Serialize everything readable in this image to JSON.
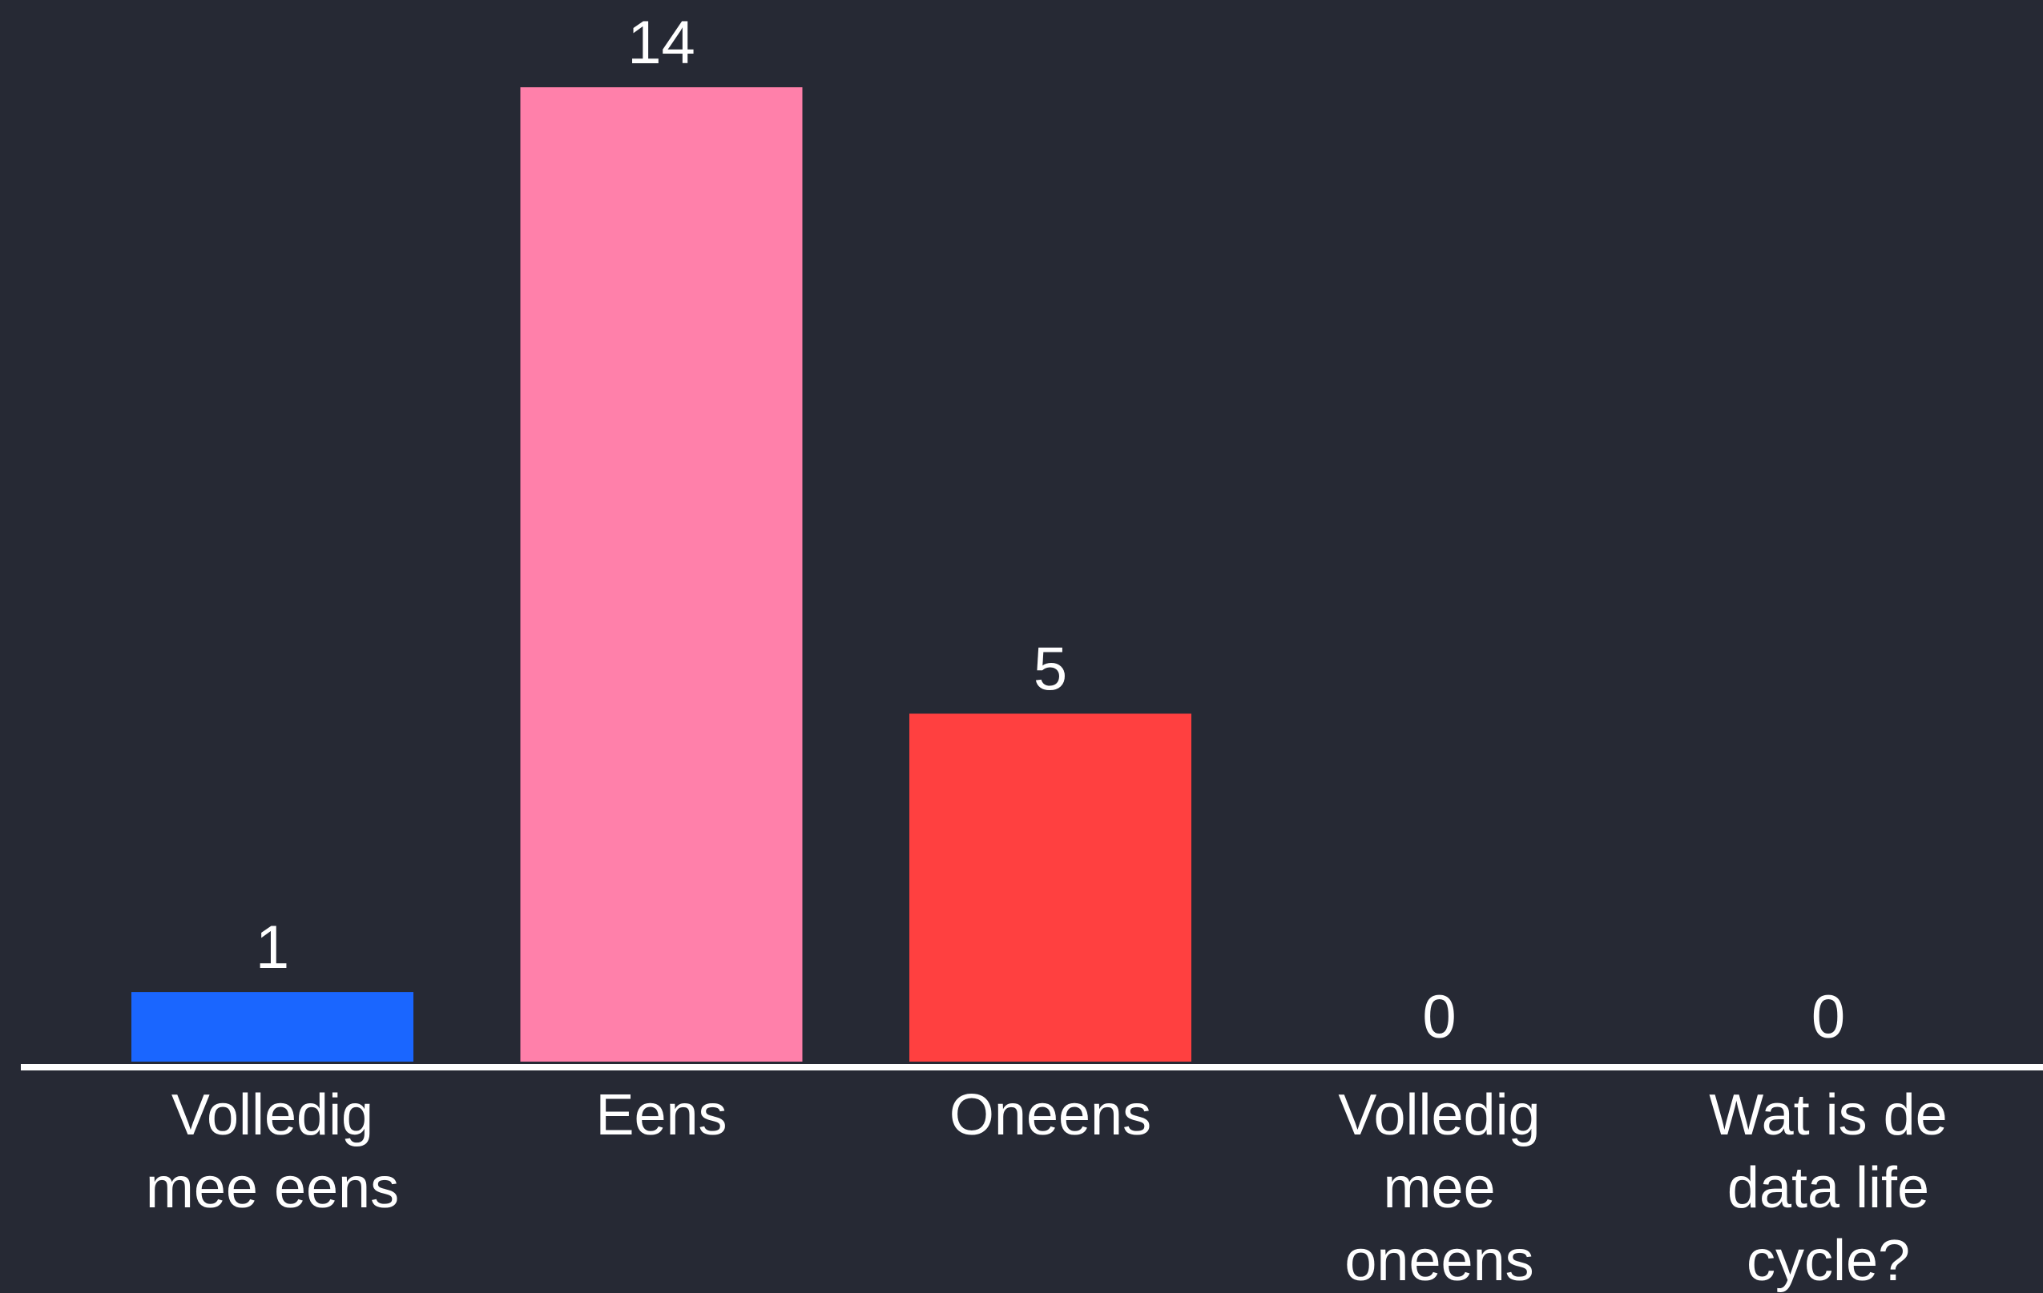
{
  "chart_data": {
    "type": "bar",
    "categories": [
      [
        "Volledig",
        "mee eens"
      ],
      [
        "Eens"
      ],
      [
        "Oneens"
      ],
      [
        "Volledig",
        "mee",
        "oneens"
      ],
      [
        "Wat is de",
        "data life",
        "cycle?"
      ]
    ],
    "values": [
      1,
      14,
      5,
      0,
      0
    ],
    "colors": [
      "#1a66ff",
      "#ff80aa",
      "#ff4040",
      "#ff80aa",
      "#1a66ff"
    ],
    "title": "",
    "xlabel": "",
    "ylabel": "",
    "ylim": [
      0,
      14
    ],
    "grid": false,
    "legend": "none",
    "axis_color": "#ffffff",
    "background": "#262934"
  }
}
